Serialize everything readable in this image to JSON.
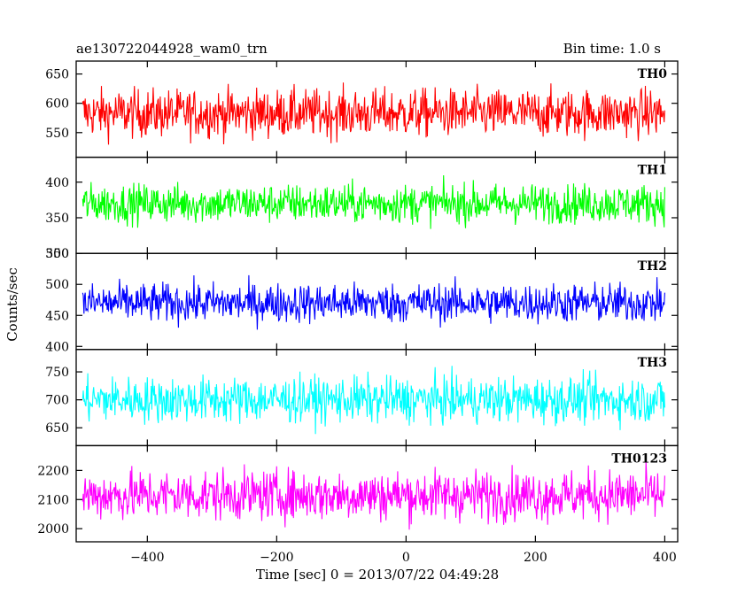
{
  "header": {
    "title": "ae130722044928_wam0_trn",
    "bin_time": "Bin time: 1.0 s"
  },
  "chart_data": {
    "type": "line",
    "xlabel": "Time [sec] 0 = 2013/07/22 04:49:28",
    "ylabel": "Counts/sec",
    "xlim": [
      -510,
      420
    ],
    "xticks": [
      -400,
      -200,
      0,
      200,
      400
    ],
    "xtick_labels": [
      "−400",
      "−200",
      "0",
      "200",
      "400"
    ],
    "x_data_range": [
      -500,
      400
    ],
    "bin_time": 1.0,
    "series": [
      {
        "name": "TH0",
        "color": "#ff0000",
        "ylim": [
          508,
          672
        ],
        "yticks": [
          550,
          600,
          650
        ],
        "mean": 583,
        "amplitude": 45
      },
      {
        "name": "TH1",
        "color": "#00ff00",
        "ylim": [
          300,
          435
        ],
        "yticks": [
          300,
          350,
          400
        ],
        "ytick_labels": [
          "300",
          "350",
          "400"
        ],
        "mean": 370,
        "amplitude": 30
      },
      {
        "name": "TH2",
        "color": "#0000ff",
        "ylim": [
          395,
          550
        ],
        "yticks": [
          400,
          450,
          500,
          550
        ],
        "mean": 470,
        "amplitude": 35
      },
      {
        "name": "TH3",
        "color": "#00ffff",
        "ylim": [
          618,
          790
        ],
        "yticks": [
          650,
          700,
          750
        ],
        "mean": 700,
        "amplitude": 45
      },
      {
        "name": "TH0123",
        "color": "#ff00ff",
        "ylim": [
          1955,
          2285
        ],
        "yticks": [
          2000,
          2100,
          2200
        ],
        "mean": 2115,
        "amplitude": 95
      }
    ]
  }
}
